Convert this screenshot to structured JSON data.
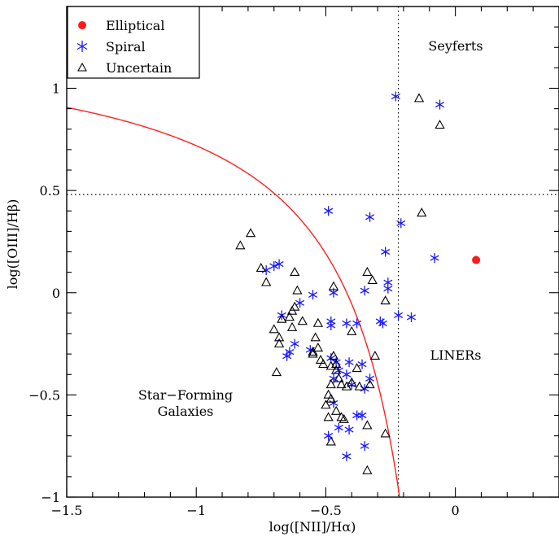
{
  "chart_data": {
    "type": "scatter",
    "xlabel": "log([NII]/Hα)",
    "ylabel": "log([OIII]/Hβ)",
    "xlim": [
      -1.5,
      0.4
    ],
    "ylim": [
      -1.0,
      1.4
    ],
    "x_ticks": [
      {
        "value": -1.5,
        "label": "−1.5"
      },
      {
        "value": -1.0,
        "label": "−1"
      },
      {
        "value": -0.5,
        "label": "−0.5"
      },
      {
        "value": 0.0,
        "label": "0"
      }
    ],
    "y_ticks": [
      {
        "value": -1.0,
        "label": "−1"
      },
      {
        "value": -0.5,
        "label": "−0.5"
      },
      {
        "value": 0.0,
        "label": "0"
      },
      {
        "value": 0.5,
        "label": "0.5"
      },
      {
        "value": 1.0,
        "label": "1"
      }
    ],
    "grid": false,
    "legend_position": "top-left",
    "colors": {
      "elliptical": "#ff1a1a",
      "spiral": "#1a1aff",
      "uncertain": "#000000",
      "curve": "#ff2020"
    },
    "legend": [
      {
        "label": "Elliptical",
        "marker": "circle"
      },
      {
        "label": "Spiral",
        "marker": "asterisk"
      },
      {
        "label": "Uncertain",
        "marker": "triangle"
      }
    ],
    "region_labels": {
      "seyferts": "Seyferts",
      "liners": "LINERs",
      "sf_line1": "Star−Forming",
      "sf_line2": "Galaxies"
    },
    "divider_lines": {
      "vertical_x": -0.22,
      "horizontal_y": 0.48
    },
    "demarcation_curve": {
      "formula": "y = 0.61 / (x - 0.05) + 1.3"
    },
    "series": [
      {
        "name": "Elliptical",
        "marker": "circle",
        "points": [
          [
            0.08,
            0.16
          ]
        ]
      },
      {
        "name": "Spiral",
        "marker": "asterisk",
        "points": [
          [
            -0.23,
            0.96
          ],
          [
            -0.06,
            0.92
          ],
          [
            -0.49,
            0.4
          ],
          [
            -0.33,
            0.37
          ],
          [
            -0.21,
            0.34
          ],
          [
            -0.27,
            0.2
          ],
          [
            -0.08,
            0.17
          ],
          [
            -0.68,
            0.14
          ],
          [
            -0.7,
            0.13
          ],
          [
            -0.73,
            0.11
          ],
          [
            -0.26,
            0.05
          ],
          [
            -0.26,
            0.02
          ],
          [
            -0.35,
            0.01
          ],
          [
            -0.47,
            0.0
          ],
          [
            -0.55,
            -0.01
          ],
          [
            -0.6,
            -0.05
          ],
          [
            -0.67,
            -0.11
          ],
          [
            -0.22,
            -0.11
          ],
          [
            -0.17,
            -0.12
          ],
          [
            -0.38,
            -0.15
          ],
          [
            -0.48,
            -0.14
          ],
          [
            -0.48,
            -0.16
          ],
          [
            -0.42,
            -0.15
          ],
          [
            -0.29,
            -0.14
          ],
          [
            -0.28,
            -0.15
          ],
          [
            -0.62,
            -0.25
          ],
          [
            -0.64,
            -0.29
          ],
          [
            -0.65,
            -0.31
          ],
          [
            -0.56,
            -0.28
          ],
          [
            -0.48,
            -0.32
          ],
          [
            -0.46,
            -0.34
          ],
          [
            -0.41,
            -0.34
          ],
          [
            -0.36,
            -0.35
          ],
          [
            -0.45,
            -0.38
          ],
          [
            -0.42,
            -0.4
          ],
          [
            -0.47,
            -0.42
          ],
          [
            -0.33,
            -0.42
          ],
          [
            -0.4,
            -0.45
          ],
          [
            -0.47,
            -0.54
          ],
          [
            -0.35,
            -0.47
          ],
          [
            -0.49,
            -0.7
          ],
          [
            -0.45,
            -0.66
          ],
          [
            -0.38,
            -0.6
          ],
          [
            -0.36,
            -0.6
          ],
          [
            -0.35,
            -0.75
          ],
          [
            -0.42,
            -0.8
          ],
          [
            -0.41,
            -0.67
          ]
        ]
      },
      {
        "name": "Uncertain",
        "marker": "triangle",
        "points": [
          [
            -0.14,
            0.95
          ],
          [
            -0.06,
            0.82
          ],
          [
            -0.13,
            0.39
          ],
          [
            -0.79,
            0.29
          ],
          [
            -0.83,
            0.23
          ],
          [
            -0.75,
            0.12
          ],
          [
            -0.62,
            0.1
          ],
          [
            -0.34,
            0.1
          ],
          [
            -0.73,
            0.05
          ],
          [
            -0.32,
            0.06
          ],
          [
            -0.47,
            0.03
          ],
          [
            -0.61,
            0.01
          ],
          [
            -0.27,
            -0.04
          ],
          [
            -0.62,
            -0.07
          ],
          [
            -0.63,
            -0.09
          ],
          [
            -0.64,
            -0.12
          ],
          [
            -0.67,
            -0.13
          ],
          [
            -0.59,
            -0.14
          ],
          [
            -0.53,
            -0.15
          ],
          [
            -0.63,
            -0.17
          ],
          [
            -0.7,
            -0.18
          ],
          [
            -0.4,
            -0.19
          ],
          [
            -0.68,
            -0.22
          ],
          [
            -0.54,
            -0.22
          ],
          [
            -0.68,
            -0.25
          ],
          [
            -0.53,
            -0.27
          ],
          [
            -0.55,
            -0.29
          ],
          [
            -0.55,
            -0.3
          ],
          [
            -0.47,
            -0.31
          ],
          [
            -0.31,
            -0.31
          ],
          [
            -0.52,
            -0.33
          ],
          [
            -0.51,
            -0.35
          ],
          [
            -0.46,
            -0.35
          ],
          [
            -0.48,
            -0.36
          ],
          [
            -0.46,
            -0.38
          ],
          [
            -0.38,
            -0.37
          ],
          [
            -0.69,
            -0.39
          ],
          [
            -0.45,
            -0.42
          ],
          [
            -0.4,
            -0.44
          ],
          [
            -0.48,
            -0.45
          ],
          [
            -0.44,
            -0.45
          ],
          [
            -0.42,
            -0.46
          ],
          [
            -0.33,
            -0.45
          ],
          [
            -0.37,
            -0.46
          ],
          [
            -0.49,
            -0.5
          ],
          [
            -0.48,
            -0.52
          ],
          [
            -0.5,
            -0.55
          ],
          [
            -0.46,
            -0.58
          ],
          [
            -0.44,
            -0.61
          ],
          [
            -0.43,
            -0.62
          ],
          [
            -0.49,
            -0.61
          ],
          [
            -0.34,
            -0.65
          ],
          [
            -0.27,
            -0.69
          ],
          [
            -0.48,
            -0.73
          ],
          [
            -0.34,
            -0.87
          ]
        ]
      }
    ]
  }
}
